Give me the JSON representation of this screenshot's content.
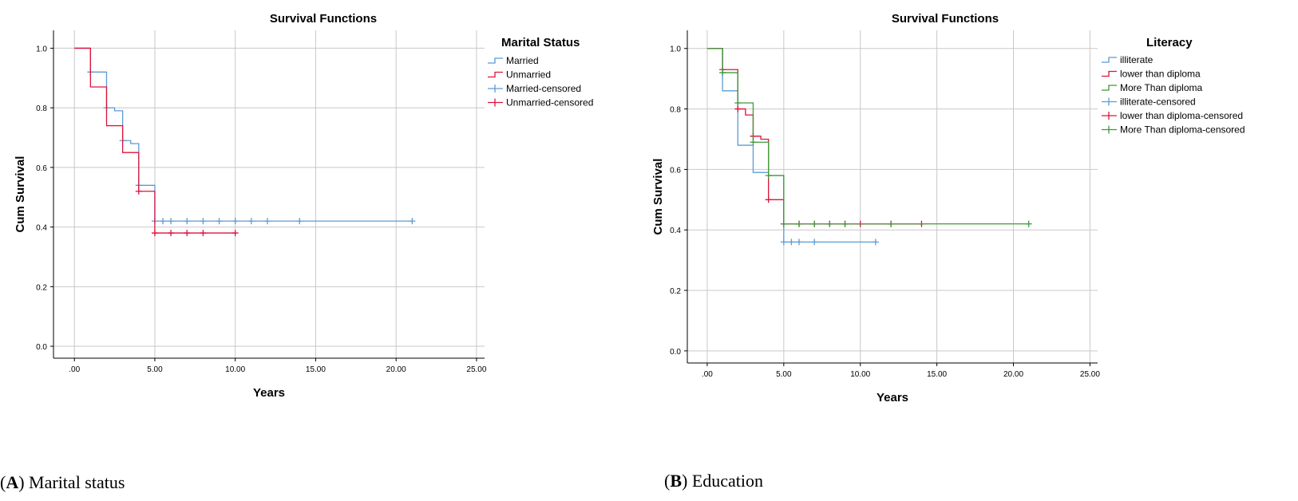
{
  "chart_data": [
    {
      "type": "line",
      "title": "Survival Functions",
      "xlabel": "Years",
      "ylabel": "Cum Survival",
      "xlim": [
        -1.3,
        25.5
      ],
      "ylim": [
        -0.04,
        1.06
      ],
      "xticks": [
        0,
        5,
        10,
        15,
        20,
        25
      ],
      "xtick_labels": [
        ".00",
        "5.00",
        "10.00",
        "15.00",
        "20.00",
        "25.00"
      ],
      "yticks": [
        0.0,
        0.2,
        0.4,
        0.6,
        0.8,
        1.0
      ],
      "ytick_labels": [
        "0.0",
        "0.2",
        "0.4",
        "0.6",
        "0.8",
        "1.0"
      ],
      "grid": true,
      "legend_title": "Marital Status",
      "legend_position": "right",
      "legend_entries": [
        "Married",
        "Unmarried",
        "Married-censored",
        "Unmarried-censored"
      ],
      "caption_letter": "A",
      "caption_text": "Marital status",
      "series": [
        {
          "name": "Married",
          "color": "#5b9bd5",
          "steps": [
            [
              0,
              1.0
            ],
            [
              1,
              0.92
            ],
            [
              2,
              0.8
            ],
            [
              2.5,
              0.79
            ],
            [
              3,
              0.69
            ],
            [
              3.5,
              0.68
            ],
            [
              4,
              0.54
            ],
            [
              5,
              0.42
            ],
            [
              21,
              0.42
            ]
          ],
          "censored": [
            [
              1,
              0.92
            ],
            [
              2,
              0.8
            ],
            [
              3,
              0.69
            ],
            [
              4,
              0.54
            ],
            [
              5,
              0.42
            ],
            [
              5.5,
              0.42
            ],
            [
              6,
              0.42
            ],
            [
              7,
              0.42
            ],
            [
              8,
              0.42
            ],
            [
              9,
              0.42
            ],
            [
              10,
              0.42
            ],
            [
              11,
              0.42
            ],
            [
              12,
              0.42
            ],
            [
              14,
              0.42
            ],
            [
              21,
              0.42
            ]
          ]
        },
        {
          "name": "Unmarried",
          "color": "#dc143c",
          "steps": [
            [
              0,
              1.0
            ],
            [
              1,
              0.87
            ],
            [
              2,
              0.74
            ],
            [
              3,
              0.65
            ],
            [
              4,
              0.52
            ],
            [
              5,
              0.38
            ],
            [
              10,
              0.38
            ]
          ],
          "censored": [
            [
              4,
              0.52
            ],
            [
              5,
              0.38
            ],
            [
              6,
              0.38
            ],
            [
              7,
              0.38
            ],
            [
              8,
              0.38
            ],
            [
              10,
              0.38
            ]
          ]
        }
      ]
    },
    {
      "type": "line",
      "title": "Survival Functions",
      "xlabel": "Years",
      "ylabel": "Cum Survival",
      "xlim": [
        -1.3,
        25.5
      ],
      "ylim": [
        -0.04,
        1.06
      ],
      "xticks": [
        0,
        5,
        10,
        15,
        20,
        25
      ],
      "xtick_labels": [
        ".00",
        "5.00",
        "10.00",
        "15.00",
        "20.00",
        "25.00"
      ],
      "yticks": [
        0.0,
        0.2,
        0.4,
        0.6,
        0.8,
        1.0
      ],
      "ytick_labels": [
        "0.0",
        "0.2",
        "0.4",
        "0.6",
        "0.8",
        "1.0"
      ],
      "grid": true,
      "legend_title": "Literacy",
      "legend_position": "right",
      "legend_entries": [
        "illiterate",
        "lower than diploma",
        "More Than diploma",
        "illiterate-censored",
        "lower than diploma-censored",
        "More Than diploma-censored"
      ],
      "caption_letter": "B",
      "caption_text": "Education",
      "series": [
        {
          "name": "illiterate",
          "color": "#5b9bd5",
          "steps": [
            [
              0,
              1.0
            ],
            [
              1,
              0.86
            ],
            [
              2,
              0.68
            ],
            [
              3,
              0.59
            ],
            [
              4,
              0.58
            ],
            [
              5,
              0.36
            ],
            [
              11,
              0.36
            ]
          ],
          "censored": [
            [
              5,
              0.36
            ],
            [
              5.5,
              0.36
            ],
            [
              6,
              0.36
            ],
            [
              7,
              0.36
            ],
            [
              11,
              0.36
            ]
          ]
        },
        {
          "name": "lower than diploma",
          "color": "#dc143c",
          "steps": [
            [
              0,
              1.0
            ],
            [
              1,
              0.93
            ],
            [
              2,
              0.8
            ],
            [
              2.5,
              0.78
            ],
            [
              3,
              0.71
            ],
            [
              3.5,
              0.7
            ],
            [
              4,
              0.5
            ],
            [
              5,
              0.42
            ],
            [
              14,
              0.42
            ]
          ],
          "censored": [
            [
              1,
              0.93
            ],
            [
              2,
              0.8
            ],
            [
              3,
              0.71
            ],
            [
              4,
              0.5
            ],
            [
              5,
              0.42
            ],
            [
              6,
              0.42
            ],
            [
              7,
              0.42
            ],
            [
              8,
              0.42
            ],
            [
              9,
              0.42
            ],
            [
              10,
              0.42
            ],
            [
              12,
              0.42
            ],
            [
              14,
              0.42
            ]
          ]
        },
        {
          "name": "More Than diploma",
          "color": "#3a9a3a",
          "steps": [
            [
              0,
              1.0
            ],
            [
              1,
              0.92
            ],
            [
              2,
              0.82
            ],
            [
              3,
              0.69
            ],
            [
              4,
              0.58
            ],
            [
              5,
              0.42
            ],
            [
              21,
              0.42
            ]
          ],
          "censored": [
            [
              1,
              0.92
            ],
            [
              2,
              0.82
            ],
            [
              3,
              0.69
            ],
            [
              4,
              0.58
            ],
            [
              5,
              0.42
            ],
            [
              6,
              0.42
            ],
            [
              7,
              0.42
            ],
            [
              8,
              0.42
            ],
            [
              9,
              0.42
            ],
            [
              12,
              0.42
            ],
            [
              21,
              0.42
            ]
          ]
        }
      ]
    }
  ]
}
